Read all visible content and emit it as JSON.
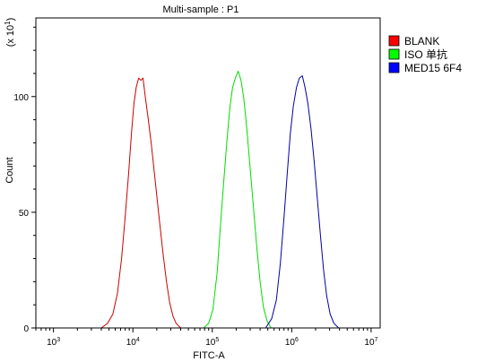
{
  "chart_data": {
    "type": "line",
    "title": "Multi-sample : P1",
    "xlabel": "FITC-A",
    "ylabel": "Count",
    "y_multiplier_label": "(x 10",
    "y_multiplier_exp": "1",
    "x_scale": "log",
    "xlim": [
      600,
      13000000
    ],
    "ylim": [
      0,
      134
    ],
    "x_ticks": [
      {
        "value": 1000,
        "base": "10",
        "exp": "3"
      },
      {
        "value": 10000,
        "base": "10",
        "exp": "4"
      },
      {
        "value": 100000,
        "base": "10",
        "exp": "5"
      },
      {
        "value": 1000000,
        "base": "10",
        "exp": "6"
      },
      {
        "value": 10000000,
        "base": "10",
        "exp": "7"
      }
    ],
    "y_ticks": [
      "0",
      "50",
      "100"
    ],
    "grid": false,
    "legend_position": "top-right",
    "series": [
      {
        "name": "BLANK",
        "color": "#cc0000",
        "swatch": "#ff0000",
        "points": [
          [
            4000,
            0
          ],
          [
            4800,
            2
          ],
          [
            5600,
            6
          ],
          [
            6400,
            15
          ],
          [
            7200,
            30
          ],
          [
            8000,
            48
          ],
          [
            8800,
            66
          ],
          [
            9600,
            84
          ],
          [
            10300,
            97
          ],
          [
            11000,
            104
          ],
          [
            11800,
            108
          ],
          [
            12600,
            107
          ],
          [
            13400,
            108
          ],
          [
            14300,
            100
          ],
          [
            15500,
            91
          ],
          [
            17000,
            80
          ],
          [
            18500,
            68
          ],
          [
            20000,
            57
          ],
          [
            22000,
            44
          ],
          [
            24000,
            32
          ],
          [
            26500,
            20
          ],
          [
            29000,
            11
          ],
          [
            32000,
            5
          ],
          [
            35000,
            2
          ],
          [
            40000,
            0
          ]
        ]
      },
      {
        "name": "ISO 单抗",
        "color": "#00dd00",
        "swatch": "#00ff00",
        "points": [
          [
            78000,
            0
          ],
          [
            90000,
            2
          ],
          [
            102000,
            8
          ],
          [
            115000,
            24
          ],
          [
            127000,
            45
          ],
          [
            140000,
            64
          ],
          [
            152000,
            80
          ],
          [
            166000,
            95
          ],
          [
            180000,
            104
          ],
          [
            195000,
            108
          ],
          [
            212000,
            111
          ],
          [
            230000,
            107
          ],
          [
            250000,
            99
          ],
          [
            272000,
            86
          ],
          [
            298000,
            70
          ],
          [
            330000,
            52
          ],
          [
            365000,
            34
          ],
          [
            400000,
            20
          ],
          [
            440000,
            9
          ],
          [
            490000,
            3
          ],
          [
            550000,
            0
          ]
        ]
      },
      {
        "name": "MED15 6F4",
        "color": "#0000aa",
        "swatch": "#0000ff",
        "points": [
          [
            470000,
            0
          ],
          [
            560000,
            4
          ],
          [
            640000,
            12
          ],
          [
            720000,
            28
          ],
          [
            800000,
            48
          ],
          [
            880000,
            67
          ],
          [
            960000,
            84
          ],
          [
            1050000,
            96
          ],
          [
            1150000,
            104
          ],
          [
            1250000,
            108
          ],
          [
            1360000,
            109
          ],
          [
            1470000,
            104
          ],
          [
            1600000,
            97
          ],
          [
            1750000,
            86
          ],
          [
            1920000,
            72
          ],
          [
            2100000,
            56
          ],
          [
            2300000,
            40
          ],
          [
            2520000,
            25
          ],
          [
            2750000,
            14
          ],
          [
            3050000,
            6
          ],
          [
            3400000,
            2
          ],
          [
            3900000,
            0
          ]
        ]
      }
    ]
  }
}
